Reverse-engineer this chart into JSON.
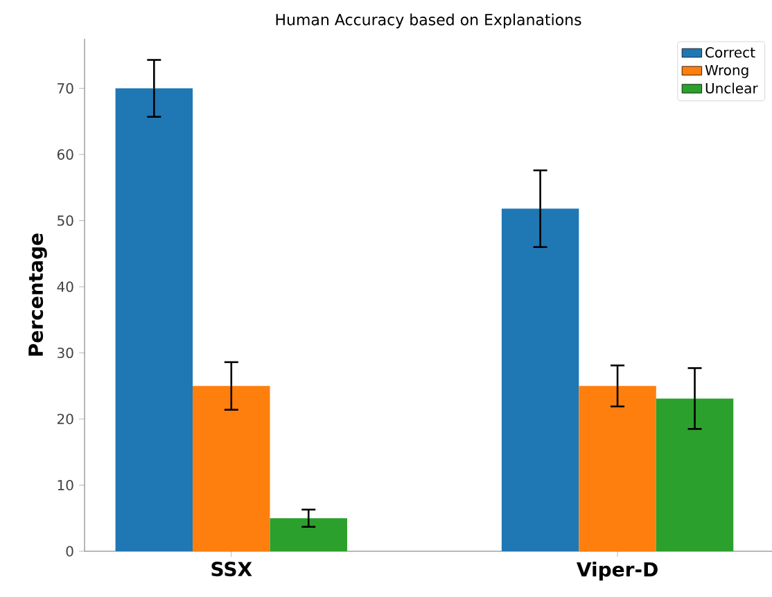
{
  "chart_data": {
    "type": "bar",
    "title": "Human Accuracy based on Explanations",
    "ylabel": "Percentage",
    "categories": [
      "SSX",
      "Viper-D"
    ],
    "series": [
      {
        "name": "Correct",
        "color": "#1f77b4",
        "values": [
          70,
          51.8
        ],
        "errors": [
          4.3,
          5.8
        ]
      },
      {
        "name": "Wrong",
        "color": "#ff7f0e",
        "values": [
          25,
          25
        ],
        "errors": [
          3.6,
          3.1
        ]
      },
      {
        "name": "Unclear",
        "color": "#2ca02c",
        "values": [
          5,
          23.1
        ],
        "errors": [
          1.3,
          4.6
        ]
      }
    ],
    "ylim": [
      0,
      77.5
    ],
    "yticks": [
      0,
      10,
      20,
      30,
      40,
      50,
      60,
      70
    ],
    "legend": "top right",
    "grid": false
  }
}
